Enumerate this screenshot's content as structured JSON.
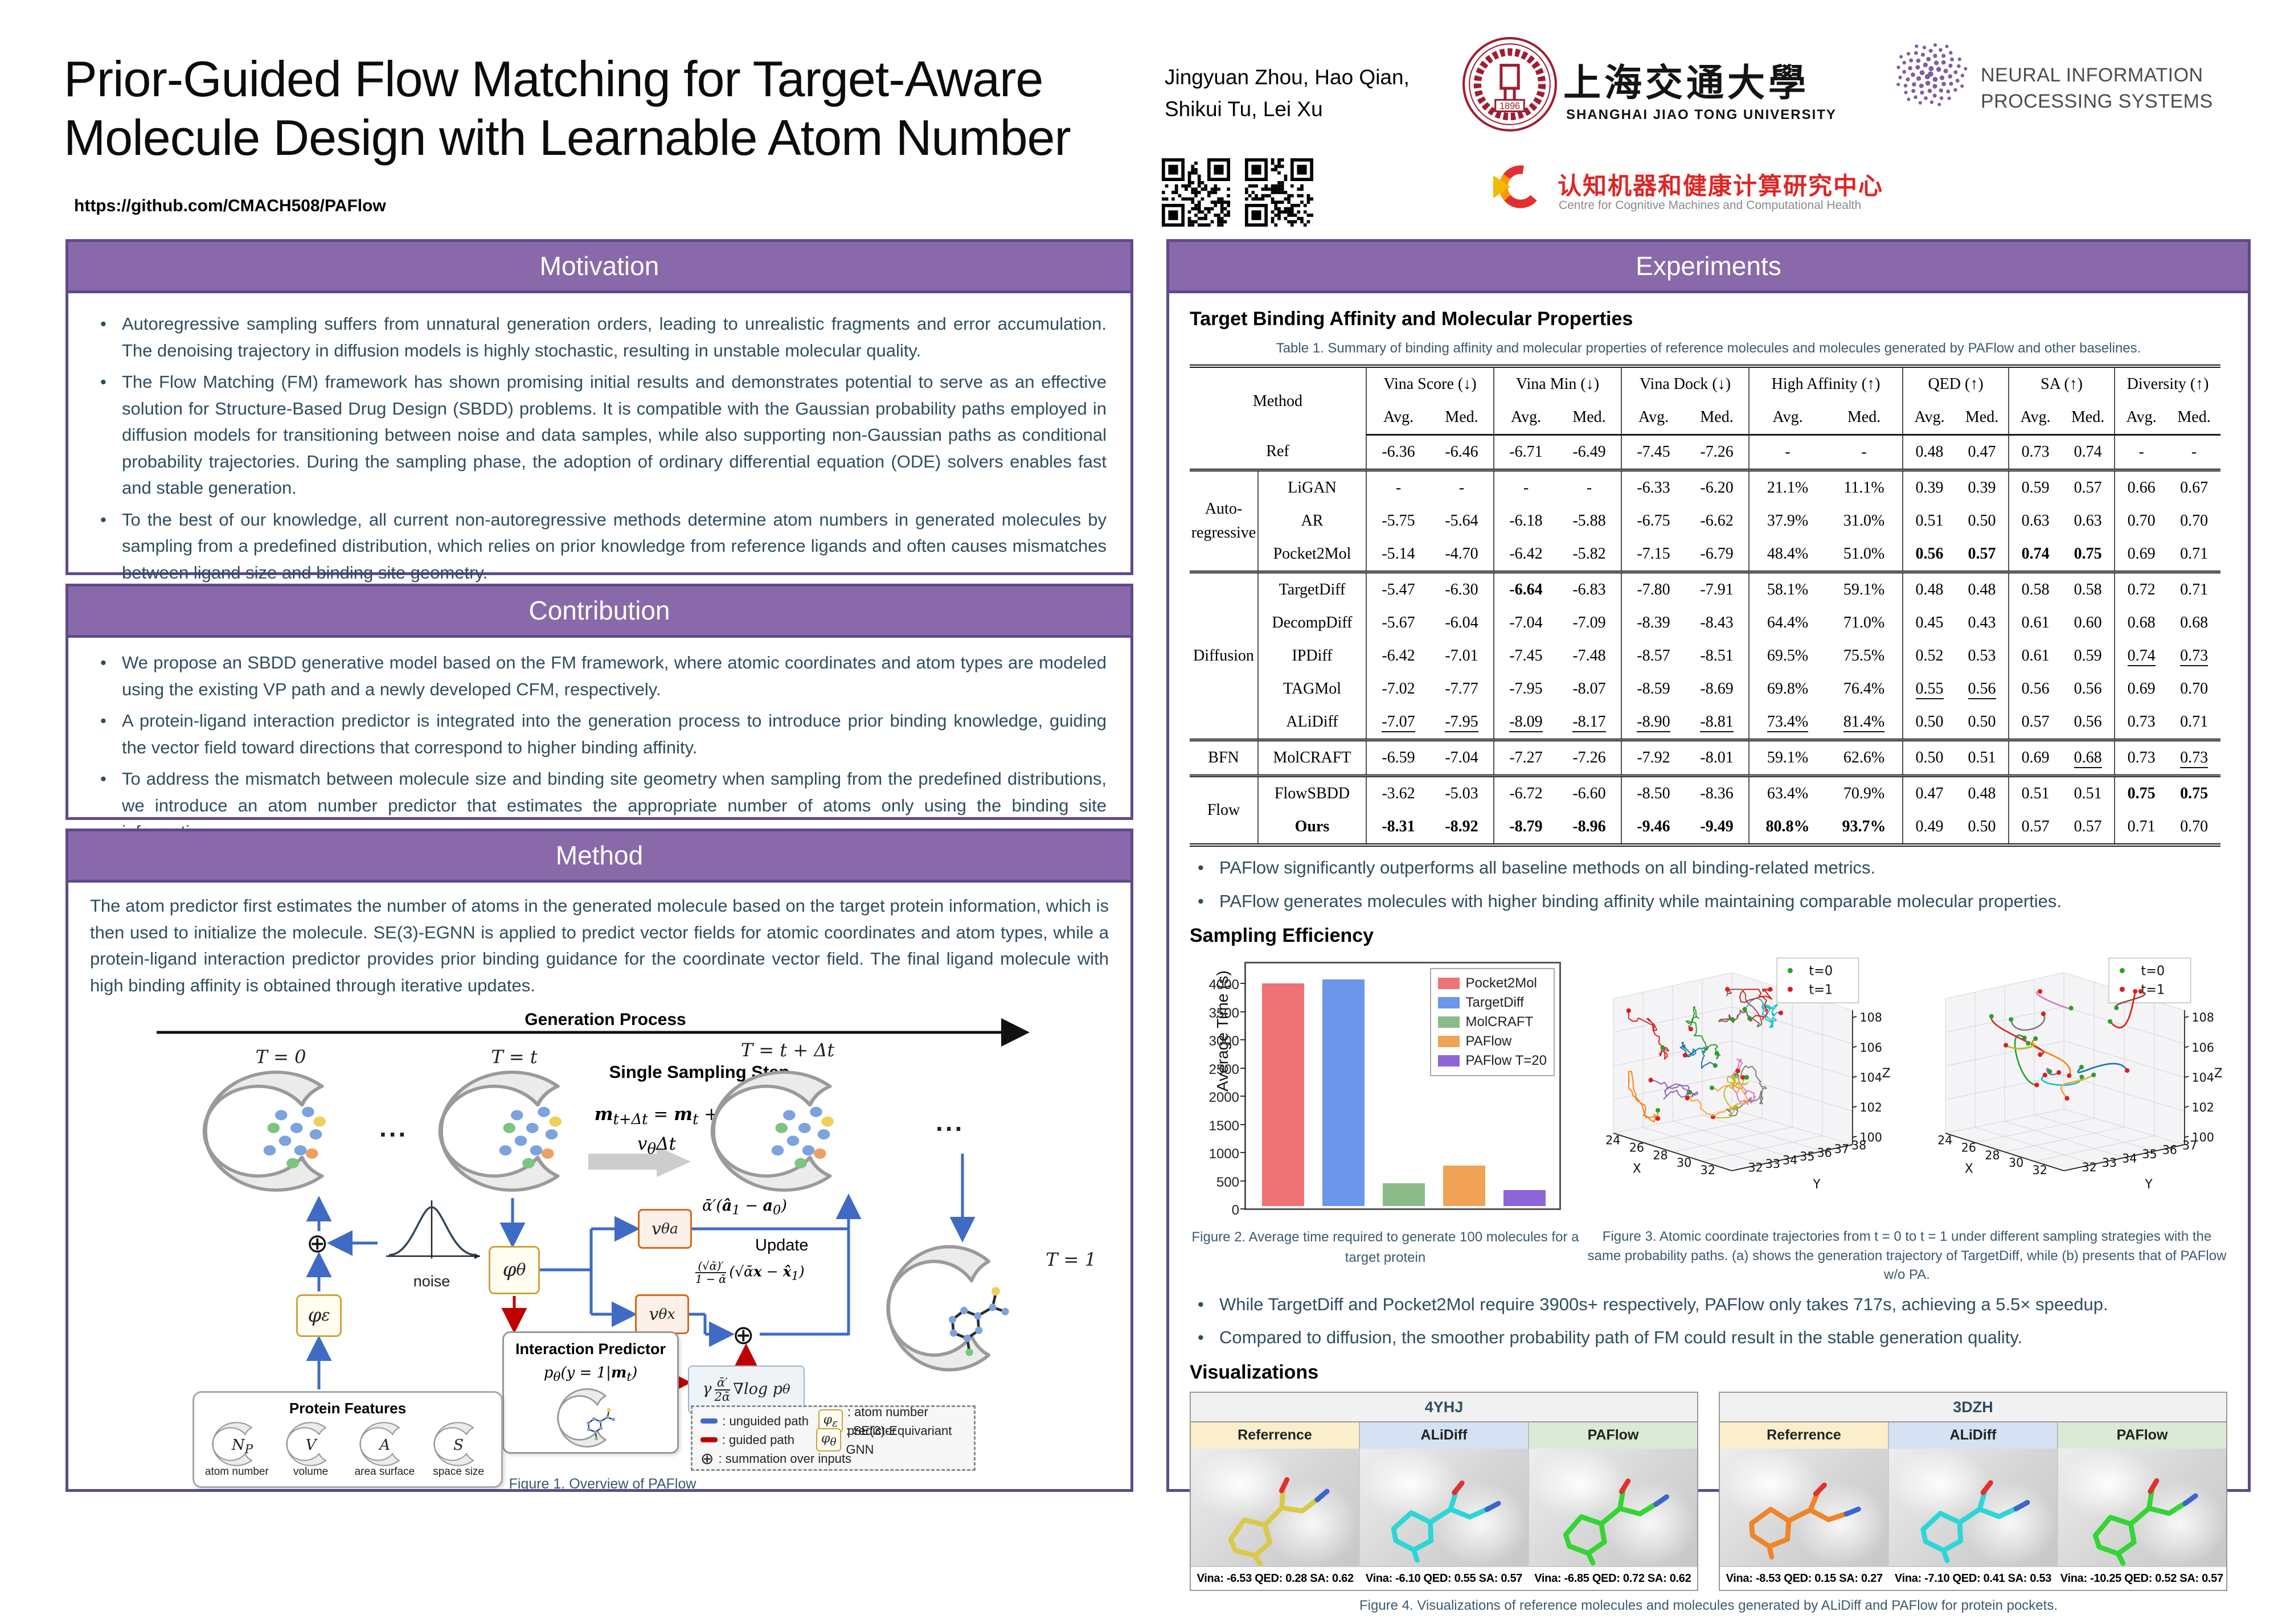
{
  "poster": {
    "title_line1": "Prior-Guided Flow Matching for Target-Aware",
    "title_line2": "Molecule Design with Learnable Atom Number",
    "github_url": "https://github.com/CMACH508/PAFlow",
    "authors_line1": "Jingyuan Zhou, Hao Qian,",
    "authors_line2": "Shikui Tu, Lei Xu"
  },
  "logos": {
    "sjtu_cn": "上海交通大學",
    "sjtu_en": "SHANGHAI JIAO TONG UNIVERSITY",
    "sjtu_seal_year": "1896",
    "ccmch_cn": "认知机器和健康计算研究中心",
    "ccmch_en": "Centre for Cognitive Machines and Computational Health",
    "neurips_line1": "NEURAL INFORMATION",
    "neurips_line2": "PROCESSING SYSTEMS"
  },
  "motivation": {
    "title": "Motivation",
    "bullets": [
      "Autoregressive sampling suffers from unnatural generation orders, leading to unrealistic fragments and error accumulation. The denoising trajectory in diffusion models is highly stochastic, resulting in unstable molecular quality.",
      "The Flow Matching (FM) framework has shown promising initial results and demonstrates potential to serve as an effective solution for Structure-Based Drug Design (SBDD) problems. It is compatible with the Gaussian probability paths employed in diffusion models for transitioning between noise and data samples, while also supporting non-Gaussian paths as conditional probability trajectories. During the sampling phase, the adoption of ordinary differential equation (ODE) solvers enables fast and stable generation.",
      "To the best of our knowledge, all current non-autoregressive methods determine atom numbers in generated molecules by sampling from a predefined distribution, which relies on prior knowledge from reference ligands and often causes mismatches between ligand size and binding site geometry."
    ]
  },
  "contribution": {
    "title": "Contribution",
    "bullets": [
      "We propose an SBDD generative model based on the FM framework, where atomic coordinates and atom types are modeled using the existing VP path and a newly developed CFM, respectively.",
      "A protein-ligand interaction predictor is integrated into the generation process to introduce prior binding knowledge, guiding the vector field toward directions that correspond to higher binding affinity.",
      "To address the mismatch between molecule size and binding site geometry when sampling from the predefined distributions, we introduce an atom number predictor that estimates the appropriate number of atoms only using the binding site information."
    ]
  },
  "method": {
    "title": "Method",
    "paragraph": "The atom predictor first estimates the number of atoms in the generated molecule based on the target protein information, which is then used to initialize the molecule. SE(3)-EGNN is applied to predict vector fields for atomic coordinates and atom types, while a protein-ligand interaction predictor provides prior binding guidance for the coordinate vector field. The final ligand molecule with high binding affinity is obtained through iterative updates.",
    "figure": {
      "gen_process": "Generation Process",
      "t0": "T = 0",
      "tt": "T = t",
      "tdt": "T = t + Δt",
      "t1": "T = 1",
      "sss": "Single Sampling Step",
      "step_formula_html": "<b>m</b><sub>t+Δt</sub> = <b>m</b><sub>t</sub> + v<sub>θ</sub>Δt",
      "noise_label": "noise",
      "phi_eps_html": "φ<sub>ε</sub>",
      "phi_theta_html": "φ<sub>θ</sub>",
      "va_html": "v<sub>θ</sub><sup>a</sup>",
      "vx_html": "v<sub>θ</sub><sup>x</sup>",
      "va_out_html": "ᾱ′(<b>â</b><sub>1</sub> − <b>a</b><sub>0</sub>)",
      "vx_out_html": "<span class=\"frac\"><span>(√ᾱ)′</span><span>1 − ᾱ</span></span>(√ᾱ<b>x</b> − <b>x̂</b><sub>1</sub>)",
      "update_label": "Update",
      "guide_html": "γ<span class=\"frac\"><span>ᾱ′</span><span>2ᾱ</span></span>∇log p<sub>θ</sub>",
      "ip_title": "Interaction Predictor",
      "ip_formula_html": "p<sub>θ</sub>(y = 1|<b>m</b><sub>t</sub>)",
      "pf_title": "Protein Features",
      "pf_items": [
        {
          "sym_html": "N<sub>P</sub>",
          "label": "atom number"
        },
        {
          "sym_html": "V",
          "label": "volume"
        },
        {
          "sym_html": "A",
          "label": "area surface"
        },
        {
          "sym_html": "S",
          "label": "space size"
        }
      ],
      "legend": {
        "unguided": "unguided path",
        "guided": "guided path",
        "sum": "summation over inputs",
        "eps": "atom number predictor",
        "theta": "SE(3)-Equivariant GNN"
      },
      "ellipsis": "...",
      "caption": "Figure 1. Overview of PAFlow"
    }
  },
  "experiments": {
    "title": "Experiments",
    "sub1": "Target Binding Affinity and Molecular Properties",
    "table_caption": "Table 1. Summary of binding affinity and molecular properties of reference molecules and molecules generated by PAFlow and other baselines.",
    "table": {
      "method_label": "Method",
      "sub_cols": [
        "Avg.",
        "Med."
      ],
      "col_groups": [
        {
          "label": "Vina Score (↓)"
        },
        {
          "label": "Vina Min (↓)"
        },
        {
          "label": "Vina Dock (↓)"
        },
        {
          "label": "High Affinity (↑)"
        },
        {
          "label": "QED (↑)"
        },
        {
          "label": "SA (↑)"
        },
        {
          "label": "Diversity (↑)"
        }
      ],
      "groups": [
        {
          "name": "",
          "rows": [
            {
              "label": "Ref",
              "cells": [
                "-6.36",
                "-6.46",
                "-6.71",
                "-6.49",
                "-7.45",
                "-7.26",
                "-",
                "-",
                "0.48",
                "0.47",
                "0.73",
                "0.74",
                "-",
                "-"
              ]
            }
          ]
        },
        {
          "name": "Auto-regressive",
          "rows": [
            {
              "label": "LiGAN",
              "cells": [
                "-",
                "-",
                "-",
                "-",
                "-6.33",
                "-6.20",
                "21.1%",
                "11.1%",
                "0.39",
                "0.39",
                "0.59",
                "0.57",
                "0.66",
                "0.67"
              ]
            },
            {
              "label": "AR",
              "cells": [
                "-5.75",
                "-5.64",
                "-6.18",
                "-5.88",
                "-6.75",
                "-6.62",
                "37.9%",
                "31.0%",
                "0.51",
                "0.50",
                "0.63",
                "0.63",
                "0.70",
                "0.70"
              ]
            },
            {
              "label": "Pocket2Mol",
              "cells": [
                "-5.14",
                "-4.70",
                "-6.42",
                "-5.82",
                "-7.15",
                "-6.79",
                "48.4%",
                "51.0%",
                "b:0.56",
                "b:0.57",
                "b:0.74",
                "b:0.75",
                "0.69",
                "0.71"
              ]
            }
          ]
        },
        {
          "name": "Diffusion",
          "rows": [
            {
              "label": "TargetDiff",
              "cells": [
                "-5.47",
                "-6.30",
                "b:-6.64",
                "-6.83",
                "-7.80",
                "-7.91",
                "58.1%",
                "59.1%",
                "0.48",
                "0.48",
                "0.58",
                "0.58",
                "0.72",
                "0.71"
              ]
            },
            {
              "label": "DecompDiff",
              "cells": [
                "-5.67",
                "-6.04",
                "-7.04",
                "-7.09",
                "-8.39",
                "-8.43",
                "64.4%",
                "71.0%",
                "0.45",
                "0.43",
                "0.61",
                "0.60",
                "0.68",
                "0.68"
              ]
            },
            {
              "label": "IPDiff",
              "cells": [
                "-6.42",
                "-7.01",
                "-7.45",
                "-7.48",
                "-8.57",
                "-8.51",
                "69.5%",
                "75.5%",
                "0.52",
                "0.53",
                "0.61",
                "0.59",
                "u:0.74",
                "u:0.73"
              ]
            },
            {
              "label": "TAGMol",
              "cells": [
                "-7.02",
                "-7.77",
                "-7.95",
                "-8.07",
                "-8.59",
                "-8.69",
                "69.8%",
                "76.4%",
                "u:0.55",
                "u:0.56",
                "0.56",
                "0.56",
                "0.69",
                "0.70"
              ]
            },
            {
              "label": "ALiDiff",
              "cells": [
                "u:-7.07",
                "u:-7.95",
                "u:-8.09",
                "u:-8.17",
                "u:-8.90",
                "u:-8.81",
                "u:73.4%",
                "u:81.4%",
                "0.50",
                "0.50",
                "0.57",
                "0.56",
                "0.73",
                "0.71"
              ]
            }
          ]
        },
        {
          "name": "BFN",
          "rows": [
            {
              "label": "MolCRAFT",
              "cells": [
                "-6.59",
                "-7.04",
                "-7.27",
                "-7.26",
                "-7.92",
                "-8.01",
                "59.1%",
                "62.6%",
                "0.50",
                "0.51",
                "0.69",
                "u:0.68",
                "0.73",
                "u:0.73"
              ]
            }
          ]
        },
        {
          "name": "Flow",
          "rows": [
            {
              "label": "FlowSBDD",
              "cells": [
                "-3.62",
                "-5.03",
                "-6.72",
                "-6.60",
                "-8.50",
                "-8.36",
                "63.4%",
                "70.9%",
                "0.47",
                "0.48",
                "0.51",
                "0.51",
                "b:0.75",
                "b:0.75"
              ]
            },
            {
              "label": "b:Ours",
              "cells": [
                "b:-8.31",
                "b:-8.92",
                "b:-8.79",
                "b:-8.96",
                "b:-9.46",
                "b:-9.49",
                "b:80.8%",
                "b:93.7%",
                "0.49",
                "0.50",
                "0.57",
                "0.57",
                "0.71",
                "0.70"
              ]
            }
          ]
        }
      ]
    },
    "bullets1": [
      "PAFlow significantly outperforms all baseline methods on all binding-related metrics.",
      "PAFlow generates molecules with higher binding affinity while maintaining comparable molecular properties."
    ],
    "sub2": "Sampling Efficiency",
    "figure2": {
      "chart_data": {
        "type": "bar",
        "categories": [
          "Pocket2Mol",
          "TargetDiff",
          "MolCRAFT",
          "PAFlow",
          "PAFlow T=20"
        ],
        "values": [
          3950,
          4020,
          400,
          717,
          280
        ],
        "colors": [
          "#ee7374",
          "#6b96ea",
          "#8cbb8a",
          "#f0a355",
          "#8e65d8"
        ],
        "title": "",
        "xlabel": "",
        "ylabel": "Average Time (s)",
        "ylim": [
          0,
          4000
        ],
        "ytick_step": 500,
        "legend_position": "upper right"
      },
      "caption": "Figure 2. Average time required  to generate 100 molecules for a target protein"
    },
    "figure3": {
      "chart_data": [
        {
          "type": "line3d",
          "label": "(a) TargetDiff",
          "style": "stochastic",
          "legend": [
            {
              "label": "t=0",
              "color": "#2ca02c"
            },
            {
              "label": "t=1",
              "color": "#e31a1c"
            }
          ],
          "x_ticks": [
            24,
            26,
            28,
            30,
            32
          ],
          "y_ticks": [
            32,
            33,
            34,
            35,
            36,
            37,
            38
          ],
          "z_ticks": [
            100,
            102,
            104,
            106,
            108
          ],
          "xlabel": "X",
          "ylabel": "Y",
          "zlabel": "Z"
        },
        {
          "type": "line3d",
          "label": "(b) PAFlow w/o PA",
          "style": "smooth",
          "legend": [
            {
              "label": "t=0",
              "color": "#2ca02c"
            },
            {
              "label": "t=1",
              "color": "#e31a1c"
            }
          ],
          "x_ticks": [
            24,
            26,
            28,
            30,
            32
          ],
          "y_ticks": [
            32,
            33,
            34,
            35,
            36,
            37
          ],
          "z_ticks": [
            100,
            102,
            104,
            106,
            108
          ],
          "xlabel": "X",
          "ylabel": "Y",
          "zlabel": "Z"
        }
      ],
      "caption": "Figure 3. Atomic coordinate trajectories from t = 0 to t = 1 under different sampling strategies with the same probability paths. (a) shows the generation trajectory of TargetDiff, while (b) presents that of PAFlow w/o PA."
    },
    "bullets2": [
      "While TargetDiff and Pocket2Mol require 3900s+ respectively, PAFlow only takes 717s, achieving a 5.5× speedup.",
      "Compared to diffusion, the smoother probability path of FM could result in the stable generation quality."
    ],
    "sub3": "Visualizations",
    "viz": {
      "header_colors": [
        "#faeecb",
        "#d4e2f3",
        "#dbead5"
      ],
      "groups": [
        {
          "id": "4YHJ",
          "cols": [
            {
              "label": "Referrence",
              "stat": "Vina: -6.53 QED: 0.28 SA: 0.62",
              "mol_color": "#d9c94a"
            },
            {
              "label": "ALiDiff",
              "stat": "Vina: -6.10 QED: 0.55 SA: 0.57",
              "mol_color": "#2fd5d5"
            },
            {
              "label": "PAFlow",
              "stat": "Vina: -6.85 QED: 0.72 SA: 0.62",
              "mol_color": "#35d435"
            }
          ]
        },
        {
          "id": "3DZH",
          "cols": [
            {
              "label": "Referrence",
              "stat": "Vina: -8.53 QED: 0.15 SA: 0.27",
              "mol_color": "#f08428"
            },
            {
              "label": "ALiDiff",
              "stat": "Vina: -7.10 QED: 0.41 SA: 0.53",
              "mol_color": "#2fd5d5"
            },
            {
              "label": "PAFlow",
              "stat": "Vina: -10.25 QED: 0.52 SA: 0.57",
              "mol_color": "#35d435"
            }
          ]
        }
      ],
      "caption": "Figure 4. Visualizations of reference molecules and molecules generated by ALiDiff and PAFlow for protein pockets."
    }
  }
}
